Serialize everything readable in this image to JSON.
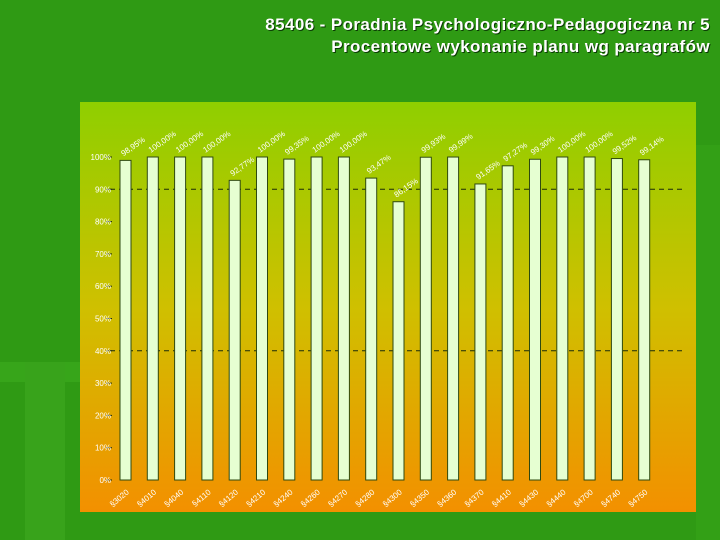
{
  "title": {
    "line1": "85406 - Poradnia Psychologiczno-Pedagogiczna nr 5",
    "line2": "Procentowe wykonanie planu wg paragrafów"
  },
  "colors": {
    "slide_background": "#2f9a14",
    "plot_top": "#8fcf00",
    "plot_middle": "#cfc000",
    "plot_bottom": "#f39000",
    "bar_fill": "#e6ffd2",
    "bar_stroke": "#2f4a10"
  },
  "chart_data": {
    "type": "bar",
    "categories": [
      "§3020",
      "§4010",
      "§4040",
      "§4110",
      "§4120",
      "§4210",
      "§4240",
      "§4260",
      "§4270",
      "§4280",
      "§4300",
      "§4350",
      "§4360",
      "§4370",
      "§4410",
      "§4430",
      "§4440",
      "§4700",
      "§4740",
      "§4750"
    ],
    "values": [
      98.95,
      100.0,
      100.0,
      100.0,
      92.77,
      100.0,
      99.35,
      100.0,
      100.0,
      93.47,
      86.15,
      99.93,
      99.99,
      91.65,
      97.27,
      99.3,
      100.0,
      100.0,
      99.52,
      99.14
    ],
    "data_labels": [
      "98,95%",
      "100,00%",
      "100,00%",
      "100,00%",
      "92,77%",
      "100,00%",
      "99,35%",
      "100,00%",
      "100,00%",
      "93,47%",
      "86,15%",
      "99,93%",
      "99,99%",
      "91,65%",
      "97,27%",
      "99,30%",
      "100,00%",
      "100,00%",
      "99,52%",
      "99,14%"
    ],
    "y_ticks": [
      "0%",
      "10%",
      "20%",
      "30%",
      "40%",
      "50%",
      "60%",
      "70%",
      "80%",
      "90%",
      "100%"
    ],
    "ylim": [
      0,
      100
    ],
    "reference_lines": [
      40,
      90
    ],
    "legend": "none"
  }
}
